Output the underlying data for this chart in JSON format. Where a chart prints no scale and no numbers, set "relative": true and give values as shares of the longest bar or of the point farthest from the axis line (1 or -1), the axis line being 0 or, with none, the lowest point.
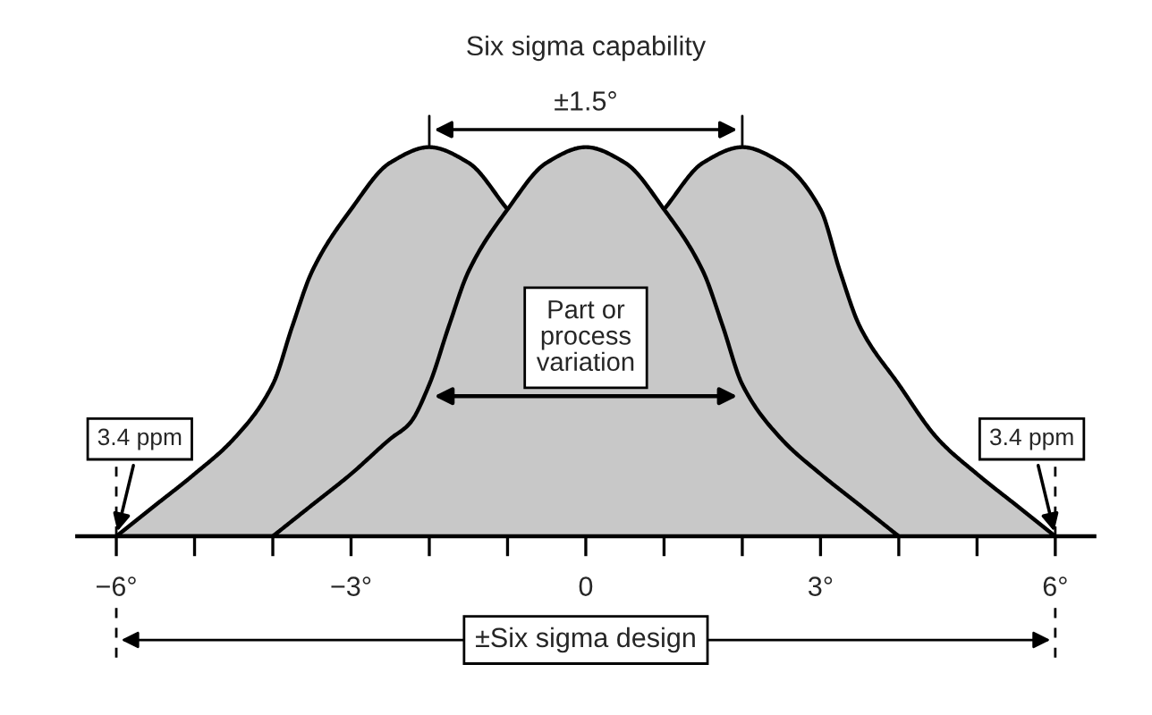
{
  "chart_data": {
    "type": "area",
    "title": "Six sigma capability",
    "relative": true,
    "xlim": [
      -6.5,
      6.5
    ],
    "xticks": [
      {
        "value": -6,
        "label": "−6°"
      },
      {
        "value": -5,
        "label": null
      },
      {
        "value": -4,
        "label": null
      },
      {
        "value": -3,
        "label": "−3°"
      },
      {
        "value": -2,
        "label": null
      },
      {
        "value": -1,
        "label": null
      },
      {
        "value": 0,
        "label": "0"
      },
      {
        "value": 1,
        "label": null
      },
      {
        "value": 2,
        "label": null
      },
      {
        "value": 3,
        "label": "3°"
      },
      {
        "value": 4,
        "label": null
      },
      {
        "value": 5,
        "label": null
      },
      {
        "value": 6,
        "label": "6°"
      }
    ],
    "series": [
      {
        "color": "#c8c8c8",
        "x": [
          -6,
          -5.5,
          -5,
          -4.5,
          -4,
          -3.75,
          -3.5,
          -3,
          -2.5,
          -2,
          -1.5,
          -1
        ],
        "values": [
          0,
          0.08,
          0.16,
          0.25,
          0.39,
          0.54,
          0.68,
          0.84,
          0.96,
          1,
          0.96,
          0.84
        ]
      },
      {
        "color": "#c8c8c8",
        "x": [
          1,
          1.5,
          2,
          2.5,
          3,
          3.25,
          3.5,
          4,
          4.5,
          5,
          5.5,
          6
        ],
        "values": [
          0.84,
          0.96,
          1,
          0.96,
          0.84,
          0.68,
          0.54,
          0.39,
          0.25,
          0.16,
          0.08,
          0
        ]
      },
      {
        "color": "#c8c8c8",
        "x": [
          -4,
          -3.5,
          -3,
          -2.5,
          -2.25,
          -2,
          -1.75,
          -1.5,
          -1,
          -0.5,
          0,
          0.5,
          1,
          1.5,
          1.75,
          2,
          2.5,
          3,
          3.5,
          4
        ],
        "values": [
          0,
          0.08,
          0.16,
          0.25,
          0.29,
          0.39,
          0.54,
          0.68,
          0.84,
          0.96,
          1,
          0.96,
          0.84,
          0.68,
          0.54,
          0.39,
          0.25,
          0.16,
          0.08,
          0
        ]
      }
    ],
    "ref_lines": [
      {
        "axis": "x",
        "value": -6,
        "line_style": "dashed"
      },
      {
        "axis": "x",
        "value": 6,
        "line_style": "dashed"
      }
    ],
    "annotations": [
      "±1.5°",
      "Part or\nprocess\nvariation",
      {
        "text": "3.4 ppm",
        "x": -6,
        "y": 0
      },
      {
        "text": "3.4 ppm",
        "x": 6,
        "y": 0
      },
      "±Six sigma design"
    ]
  }
}
